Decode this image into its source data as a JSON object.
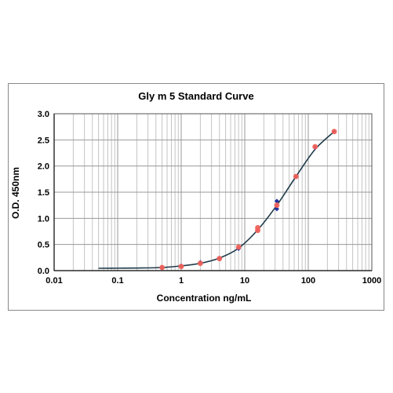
{
  "chart_data": {
    "type": "scatter",
    "title": "Gly m 5 Standard Curve",
    "xlabel": "Concentration ng/mL",
    "ylabel": "O.D. 450nm",
    "x_scale": "log",
    "xlim": [
      0.01,
      1000
    ],
    "ylim": [
      0,
      3.0
    ],
    "x_ticks": [
      "0.01",
      "0.1",
      "1",
      "10",
      "100",
      "1000"
    ],
    "y_ticks": [
      "0.0",
      "0.5",
      "1.0",
      "1.5",
      "2.0",
      "2.5",
      "3.0"
    ],
    "grid": true,
    "legend": "none",
    "series": [
      {
        "type": "scatter",
        "marker": "diamond",
        "color": "#1f2fa0",
        "x": [
          0.5,
          1,
          2,
          4,
          8,
          16,
          32,
          32,
          64,
          128,
          256
        ],
        "y": [
          0.06,
          0.09,
          0.16,
          0.24,
          0.42,
          0.78,
          1.18,
          1.33,
          1.8,
          2.35,
          2.66
        ]
      },
      {
        "type": "scatter",
        "marker": "circle",
        "color": "#f0625a",
        "x": [
          0.5,
          1,
          2,
          4,
          8,
          16,
          16,
          32,
          64,
          128,
          256
        ],
        "y": [
          0.06,
          0.08,
          0.14,
          0.23,
          0.45,
          0.77,
          0.82,
          1.25,
          1.8,
          2.37,
          2.66
        ]
      },
      {
        "type": "line",
        "color": "#1f3a4a",
        "x": [
          0.05,
          0.1,
          0.2,
          0.5,
          1,
          2,
          4,
          8,
          16,
          32,
          64,
          128,
          256
        ],
        "y": [
          0.045,
          0.047,
          0.05,
          0.06,
          0.09,
          0.14,
          0.24,
          0.43,
          0.78,
          1.25,
          1.8,
          2.32,
          2.66
        ]
      }
    ]
  }
}
